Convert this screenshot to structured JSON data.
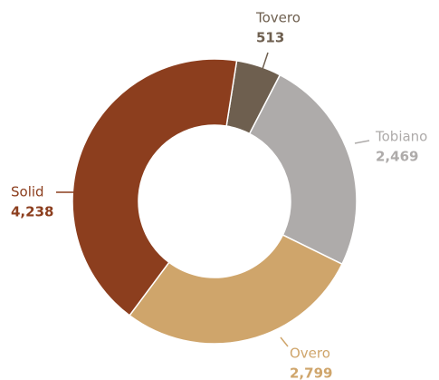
{
  "chart_data": {
    "type": "donut",
    "categories": [
      "Tovero",
      "Tobiano",
      "Overo",
      "Solid"
    ],
    "values": [
      513,
      2469,
      2799,
      4238
    ],
    "value_labels": [
      "513",
      "2,469",
      "2,799",
      "4,238"
    ],
    "colors": [
      "#6e5f4f",
      "#aeabaa",
      "#cfa56b",
      "#8c3e1e"
    ]
  }
}
